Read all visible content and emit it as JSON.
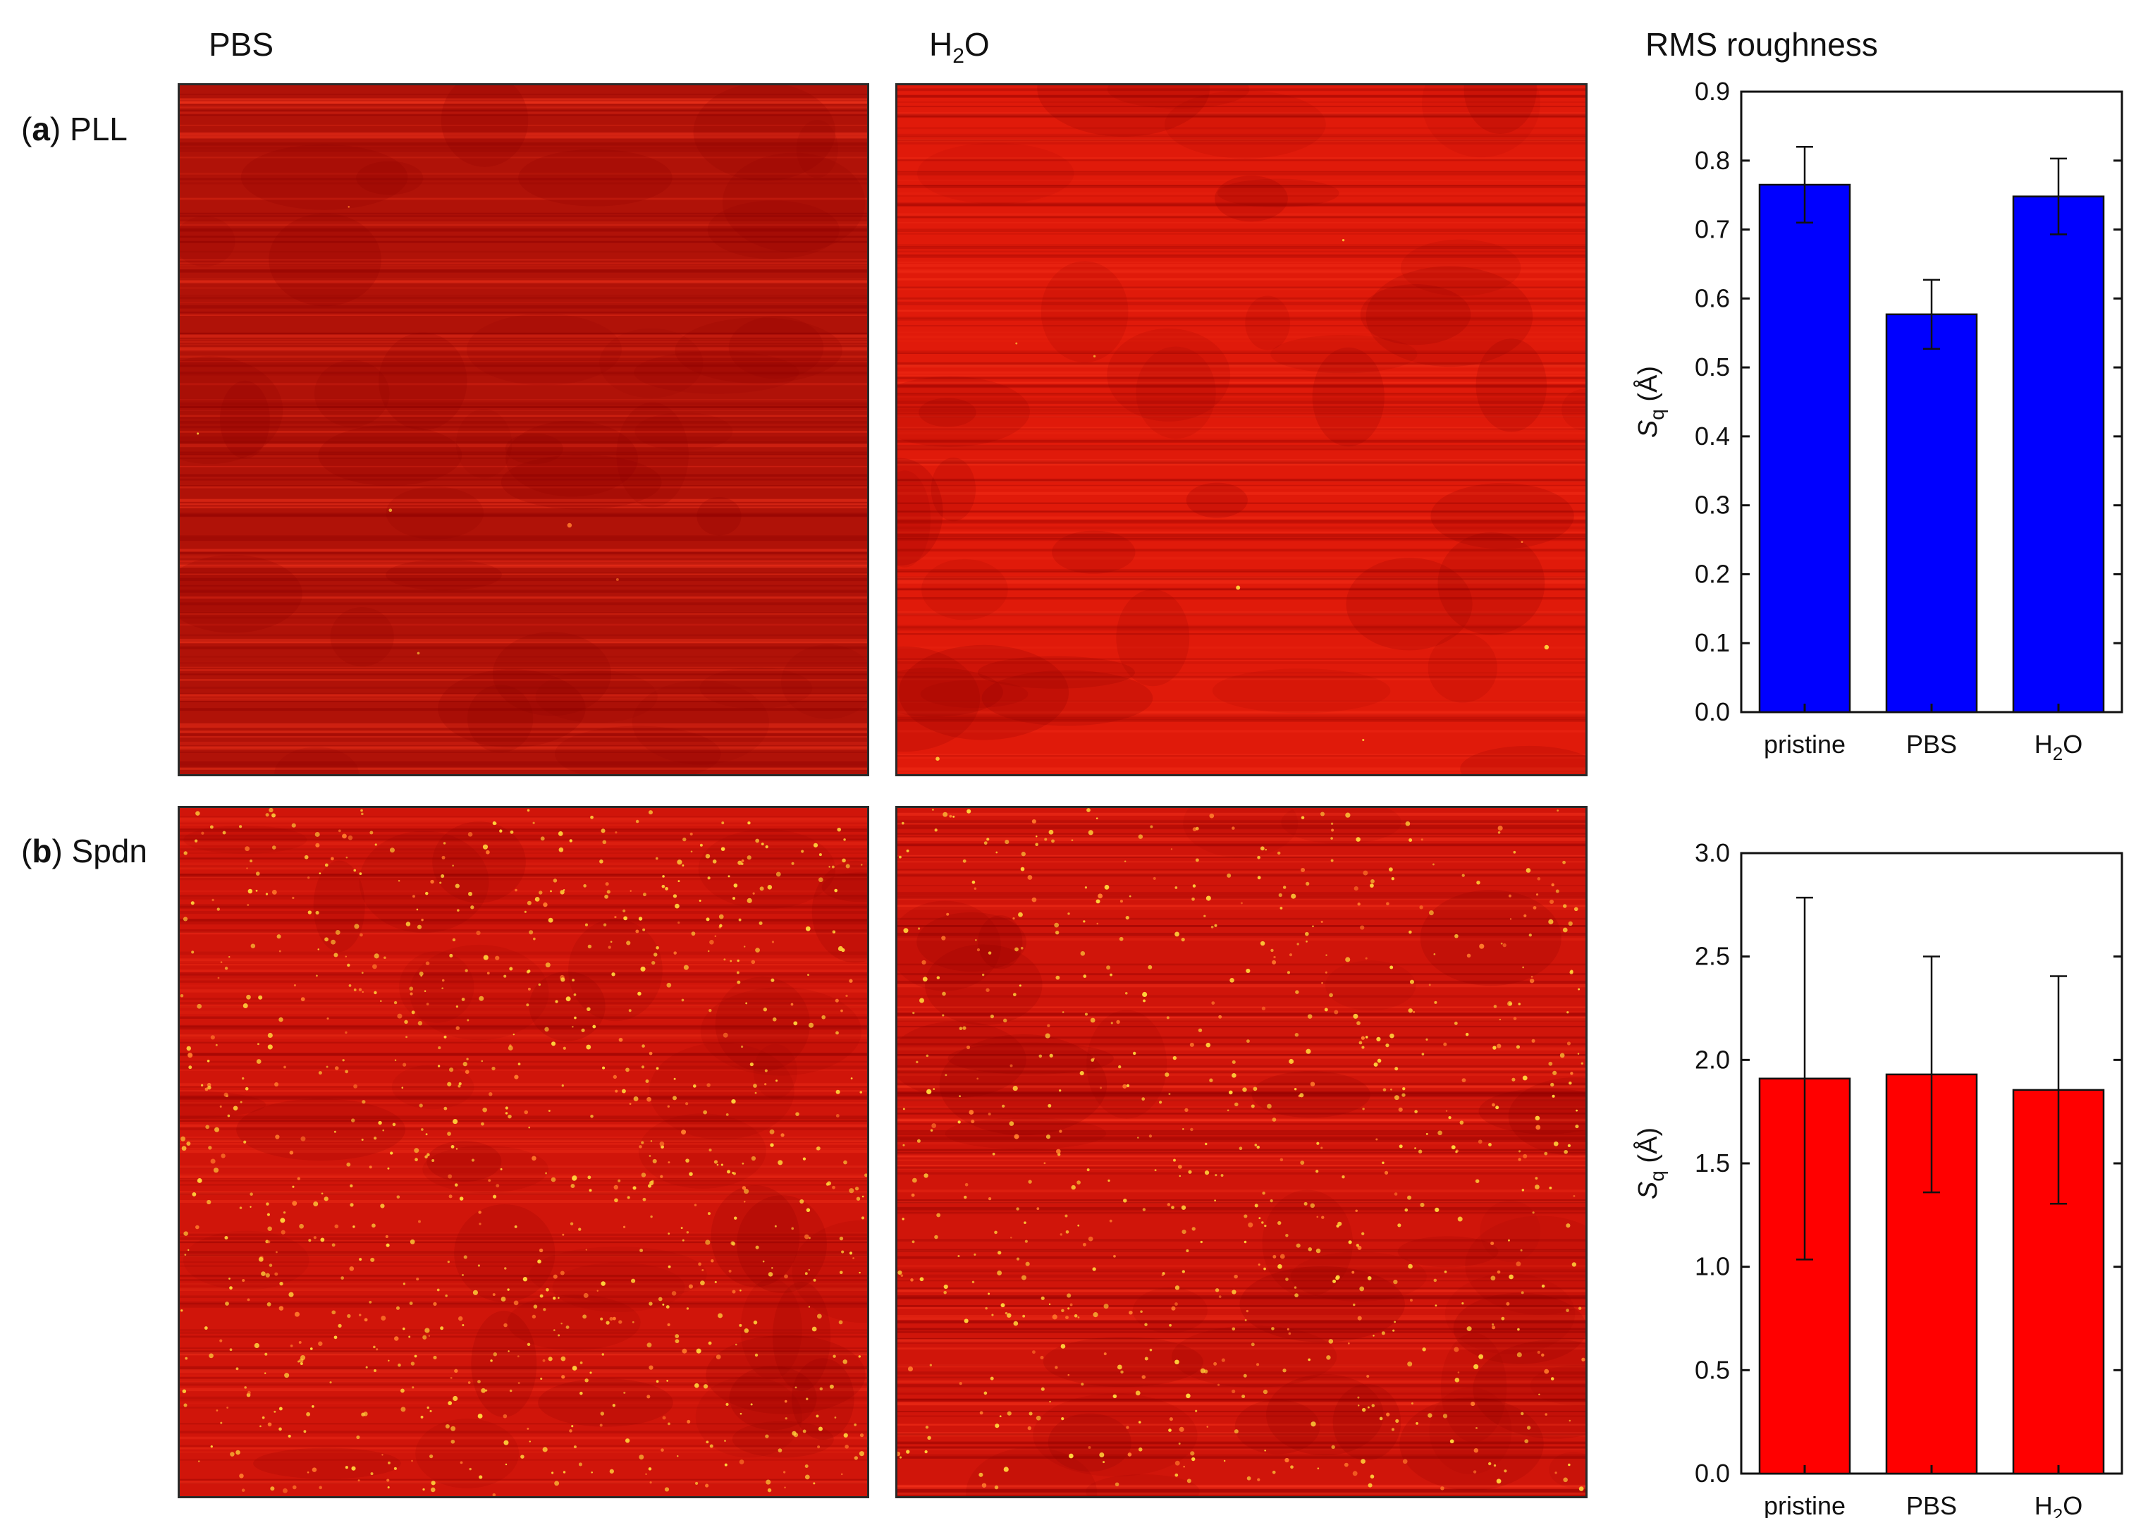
{
  "column_headers": {
    "pbs": "PBS",
    "h2o_main": "H",
    "h2o_sub": "2",
    "h2o_tail": "O",
    "rms": "RMS roughness"
  },
  "rows": [
    {
      "letter": "a",
      "label": "PLL"
    },
    {
      "letter": "b",
      "label": "Spdn"
    }
  ],
  "colors": {
    "afm_dark": "#8a0000",
    "afm_base_pll_pbs": "#b01208",
    "afm_base_pll_h2o": "#e01a0a",
    "afm_base_spdn": "#d0150a",
    "bar_pll": "#0000ff",
    "bar_spdn": "#ff0000",
    "speck": "#ffd23a"
  },
  "chart_data": [
    {
      "type": "bar",
      "categories": [
        "pristine",
        "PBS",
        "H2O"
      ],
      "values": [
        0.765,
        0.577,
        0.748
      ],
      "errors": [
        0.055,
        0.05,
        0.055
      ],
      "ylabel_main": "S",
      "ylabel_sub": "q",
      "ylabel_tail": " (Å)",
      "ylim": [
        0,
        0.9
      ],
      "yticks": [
        "0.0",
        "0.1",
        "0.2",
        "0.3",
        "0.4",
        "0.5",
        "0.6",
        "0.7",
        "0.8",
        "0.9"
      ],
      "color": "#0000ff"
    },
    {
      "type": "bar",
      "categories": [
        "pristine",
        "PBS",
        "H2O"
      ],
      "values": [
        1.91,
        1.93,
        1.855
      ],
      "errors": [
        0.875,
        0.57,
        0.55
      ],
      "ylabel_main": "S",
      "ylabel_sub": "q",
      "ylabel_tail": " (Å)",
      "ylim": [
        0,
        3.0
      ],
      "yticks": [
        "0.0",
        "0.5",
        "1.0",
        "1.5",
        "2.0",
        "2.5",
        "3.0"
      ],
      "color": "#ff0000"
    }
  ]
}
